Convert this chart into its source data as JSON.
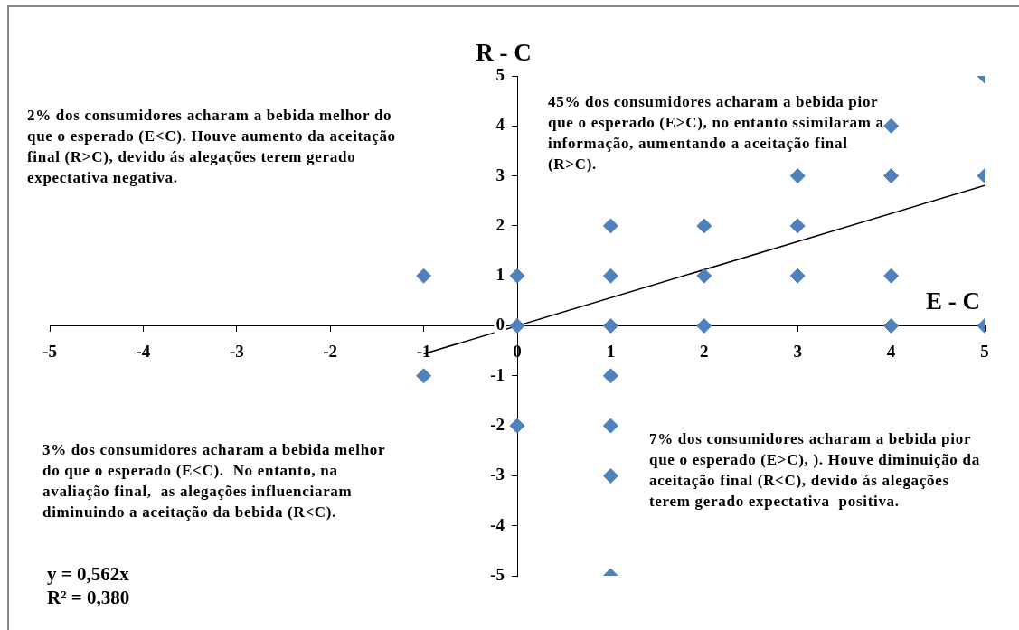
{
  "chart_data": {
    "type": "scatter",
    "xlabel": "E - C",
    "ylabel": "R - C",
    "xlim": [
      -5,
      5
    ],
    "xticks": [
      -5,
      -4,
      -3,
      -2,
      -1,
      0,
      1,
      2,
      3,
      4,
      5
    ],
    "ylim": [
      -5,
      5
    ],
    "yticks": [
      -5,
      -4,
      -3,
      -2,
      -1,
      0,
      1,
      2,
      3,
      4,
      5
    ],
    "grid": false,
    "legend": false,
    "marker": "diamond",
    "series": [
      {
        "type": "scatter",
        "color": "#4f81bd",
        "x": [
          -1,
          -1,
          0,
          0,
          0,
          1,
          1,
          1,
          1,
          1,
          1,
          1,
          2,
          2,
          2,
          3,
          3,
          3,
          4,
          4,
          4,
          4,
          5,
          5,
          5
        ],
        "values": [
          1,
          -1,
          1,
          0,
          -2,
          2,
          1,
          0,
          -1,
          -2,
          -3,
          -5,
          2,
          1,
          0,
          3,
          2,
          1,
          4,
          3,
          1,
          0,
          5,
          3,
          0
        ]
      },
      {
        "type": "line",
        "color": "#000000",
        "marker": "none",
        "x": [
          -1,
          5
        ],
        "values": [
          -0.562,
          2.81
        ]
      }
    ],
    "annotations": [
      "2% dos consumidores acharam a bebida melhor do que o esperado (E<C). Houve aumento da aceitação final (R>C), devido ás alegações terem gerado expectativa negativa.",
      "45% dos consumidores acharam a bebida pior que o esperado (E>C), no entanto ssimilaram a informação, aumentando a aceitação final (R>C).",
      "3% dos consumidores acharam a bebida melhor do que o esperado (E<C).  No entanto, na avaliação final,  as alegações influenciaram diminuindo a aceitação da bebida (R<C).",
      "7% dos consumidores acharam a bebida pior que o esperado (E>C), ). Houve diminuição da aceitação final (R<C), devido ás alegações terem gerado expectativa  positiva.",
      "y = 0,562x",
      "R² = 0,380"
    ]
  }
}
